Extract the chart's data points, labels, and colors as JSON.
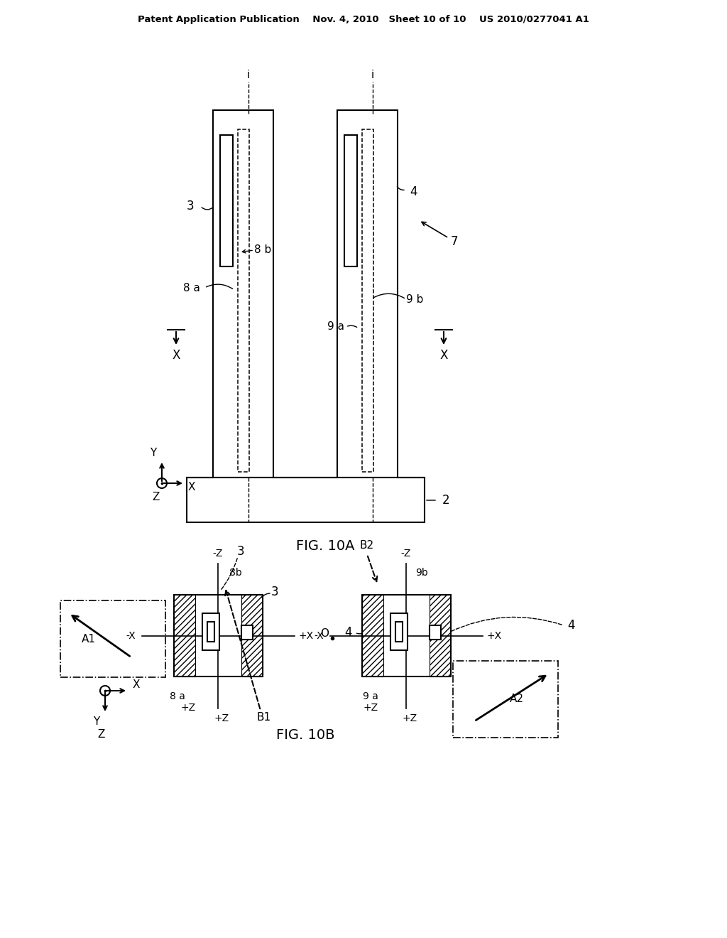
{
  "bg_color": "#ffffff",
  "line_color": "#000000",
  "header_text": "Patent Application Publication    Nov. 4, 2010   Sheet 10 of 10    US 2010/0277041 A1",
  "fig10a_label": "FIG. 10A",
  "fig10b_label": "FIG. 10B",
  "lw": 1.5
}
